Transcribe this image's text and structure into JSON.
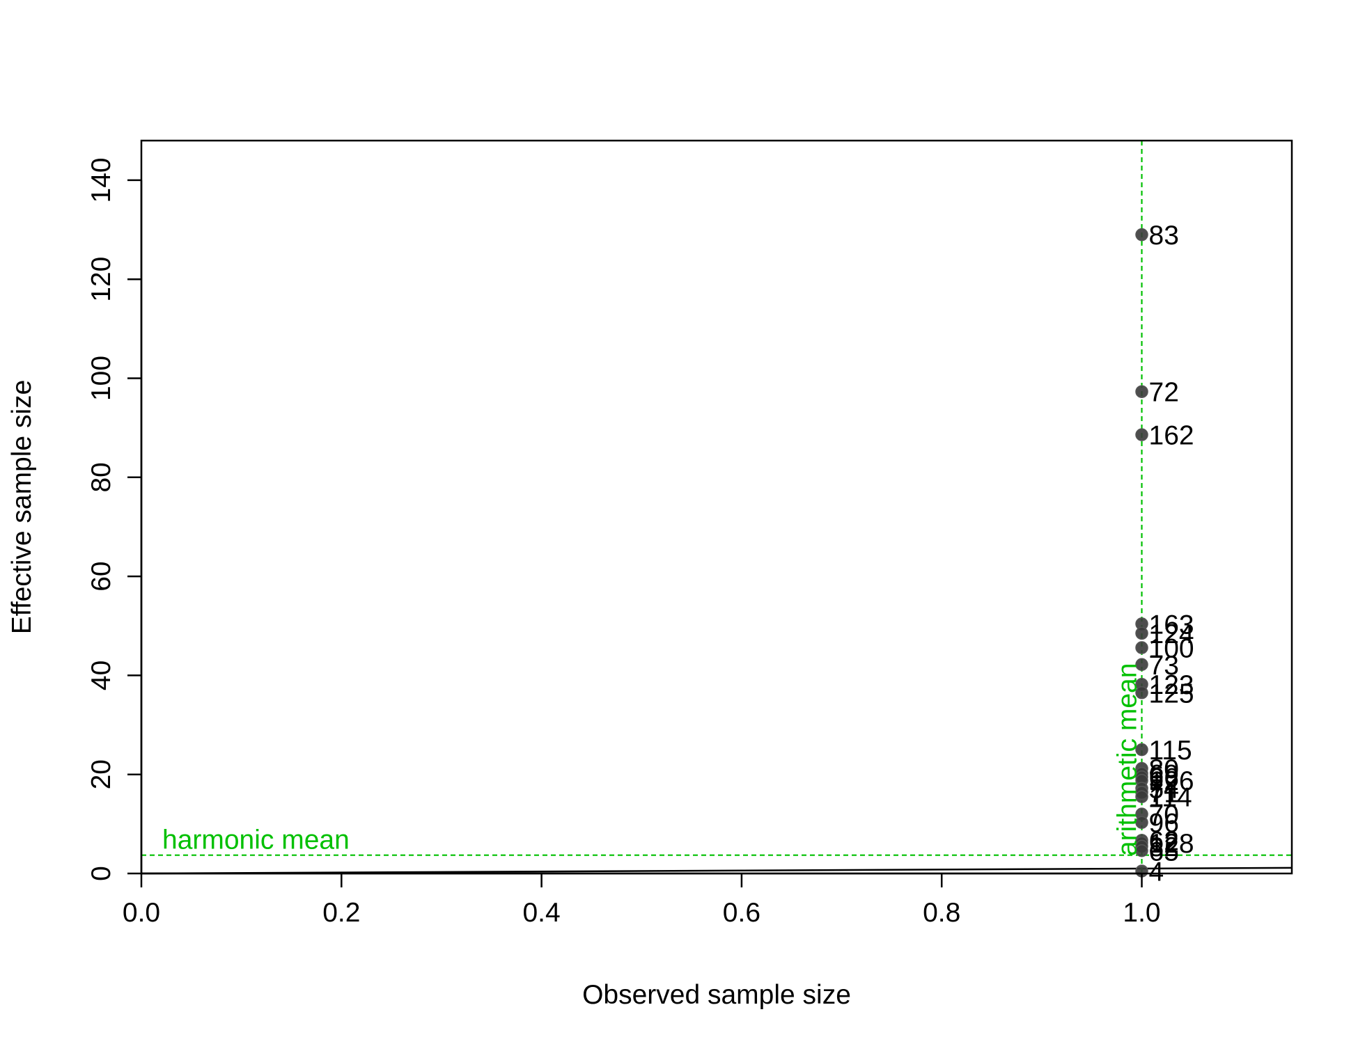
{
  "chart_data": {
    "type": "scatter",
    "title": "",
    "xlabel": "Observed sample size",
    "ylabel": "Effective sample size",
    "xlim": [
      0,
      1.15
    ],
    "ylim": [
      0,
      148
    ],
    "x_ticks": [
      "0.0",
      "0.2",
      "0.4",
      "0.6",
      "0.8",
      "1.0"
    ],
    "x_tick_values": [
      0,
      0.2,
      0.4,
      0.6,
      0.8,
      1.0
    ],
    "y_ticks": [
      "0",
      "20",
      "40",
      "60",
      "80",
      "100",
      "120",
      "140"
    ],
    "y_tick_values": [
      0,
      20,
      40,
      60,
      80,
      100,
      120,
      140
    ],
    "grid": false,
    "point_color": "#3a3a3a",
    "annotation_color": "#00c000",
    "reference_lines": [
      {
        "orientation": "vertical",
        "x": 1.0,
        "label": "arithmetic mean",
        "style": "dashed"
      },
      {
        "orientation": "horizontal",
        "y": 3.7,
        "label": "harmonic mean",
        "style": "dashed"
      }
    ],
    "identity_line": {
      "from": [
        0,
        0
      ],
      "to": [
        1.15,
        1.15
      ]
    },
    "points": [
      {
        "x": 1,
        "y": 129,
        "label": "83"
      },
      {
        "x": 1,
        "y": 97.3,
        "label": "72"
      },
      {
        "x": 1,
        "y": 88.6,
        "label": "162"
      },
      {
        "x": 1,
        "y": 50.4,
        "label": "163"
      },
      {
        "x": 1,
        "y": 48.5,
        "label": "124"
      },
      {
        "x": 1,
        "y": 45.6,
        "label": "100"
      },
      {
        "x": 1,
        "y": 42.2,
        "label": "73"
      },
      {
        "x": 1,
        "y": 38.2,
        "label": "123"
      },
      {
        "x": 1,
        "y": 36.5,
        "label": "125"
      },
      {
        "x": 1,
        "y": 25.0,
        "label": "115"
      },
      {
        "x": 1,
        "y": 21.2,
        "label": "80"
      },
      {
        "x": 1,
        "y": 20.2,
        "label": "69"
      },
      {
        "x": 1,
        "y": 19.5,
        "label": "66"
      },
      {
        "x": 1,
        "y": 18.8,
        "label": "126"
      },
      {
        "x": 1,
        "y": 17.2,
        "label": "54"
      },
      {
        "x": 1,
        "y": 16.4,
        "label": "71"
      },
      {
        "x": 1,
        "y": 15.5,
        "label": "114"
      },
      {
        "x": 1,
        "y": 12.0,
        "label": "70"
      },
      {
        "x": 1,
        "y": 10.3,
        "label": "96"
      },
      {
        "x": 1,
        "y": 6.7,
        "label": "62"
      },
      {
        "x": 1,
        "y": 6.2,
        "label": "128"
      },
      {
        "x": 1,
        "y": 5.5,
        "label": "82"
      },
      {
        "x": 1,
        "y": 4.6,
        "label": "65"
      },
      {
        "x": 1,
        "y": 0.5,
        "label": "4"
      }
    ]
  }
}
